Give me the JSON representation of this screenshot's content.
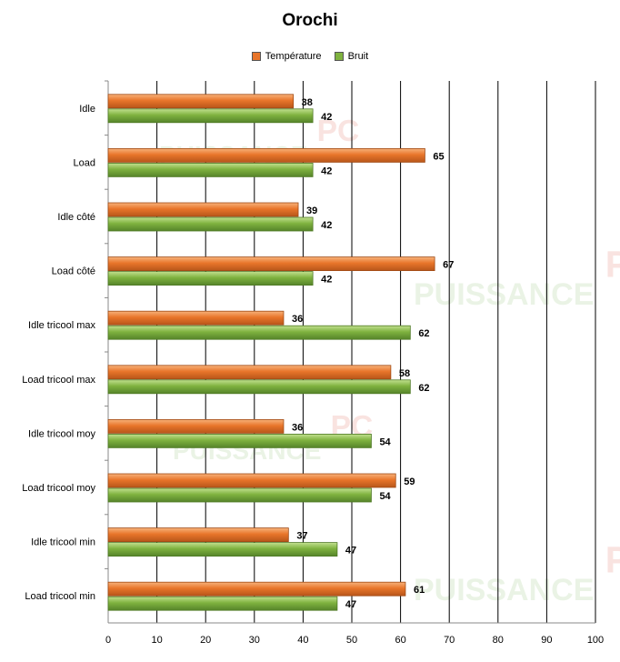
{
  "chart_data": {
    "type": "bar",
    "orientation": "horizontal",
    "title": "Orochi",
    "categories": [
      "Idle",
      "Load",
      "Idle côté",
      "Load côté",
      "Idle tricool max",
      "Load tricool max",
      "Idle tricool moy",
      "Load tricool moy",
      "Idle tricool min",
      "Load tricool min"
    ],
    "series": [
      {
        "name": "Température",
        "color": "#e8752a",
        "values": [
          38,
          65,
          39,
          67,
          36,
          58,
          36,
          59,
          37,
          61
        ]
      },
      {
        "name": "Bruit",
        "color": "#7fb23f",
        "values": [
          42,
          42,
          42,
          42,
          62,
          62,
          54,
          54,
          47,
          47
        ]
      }
    ],
    "xlim": [
      0,
      100
    ],
    "xticks": [
      0,
      10,
      20,
      30,
      40,
      50,
      60,
      70,
      80,
      90,
      100
    ],
    "grid": true,
    "legend_position": "top"
  },
  "watermark": {
    "word": "PUISSANCE",
    "tag": "PC"
  }
}
